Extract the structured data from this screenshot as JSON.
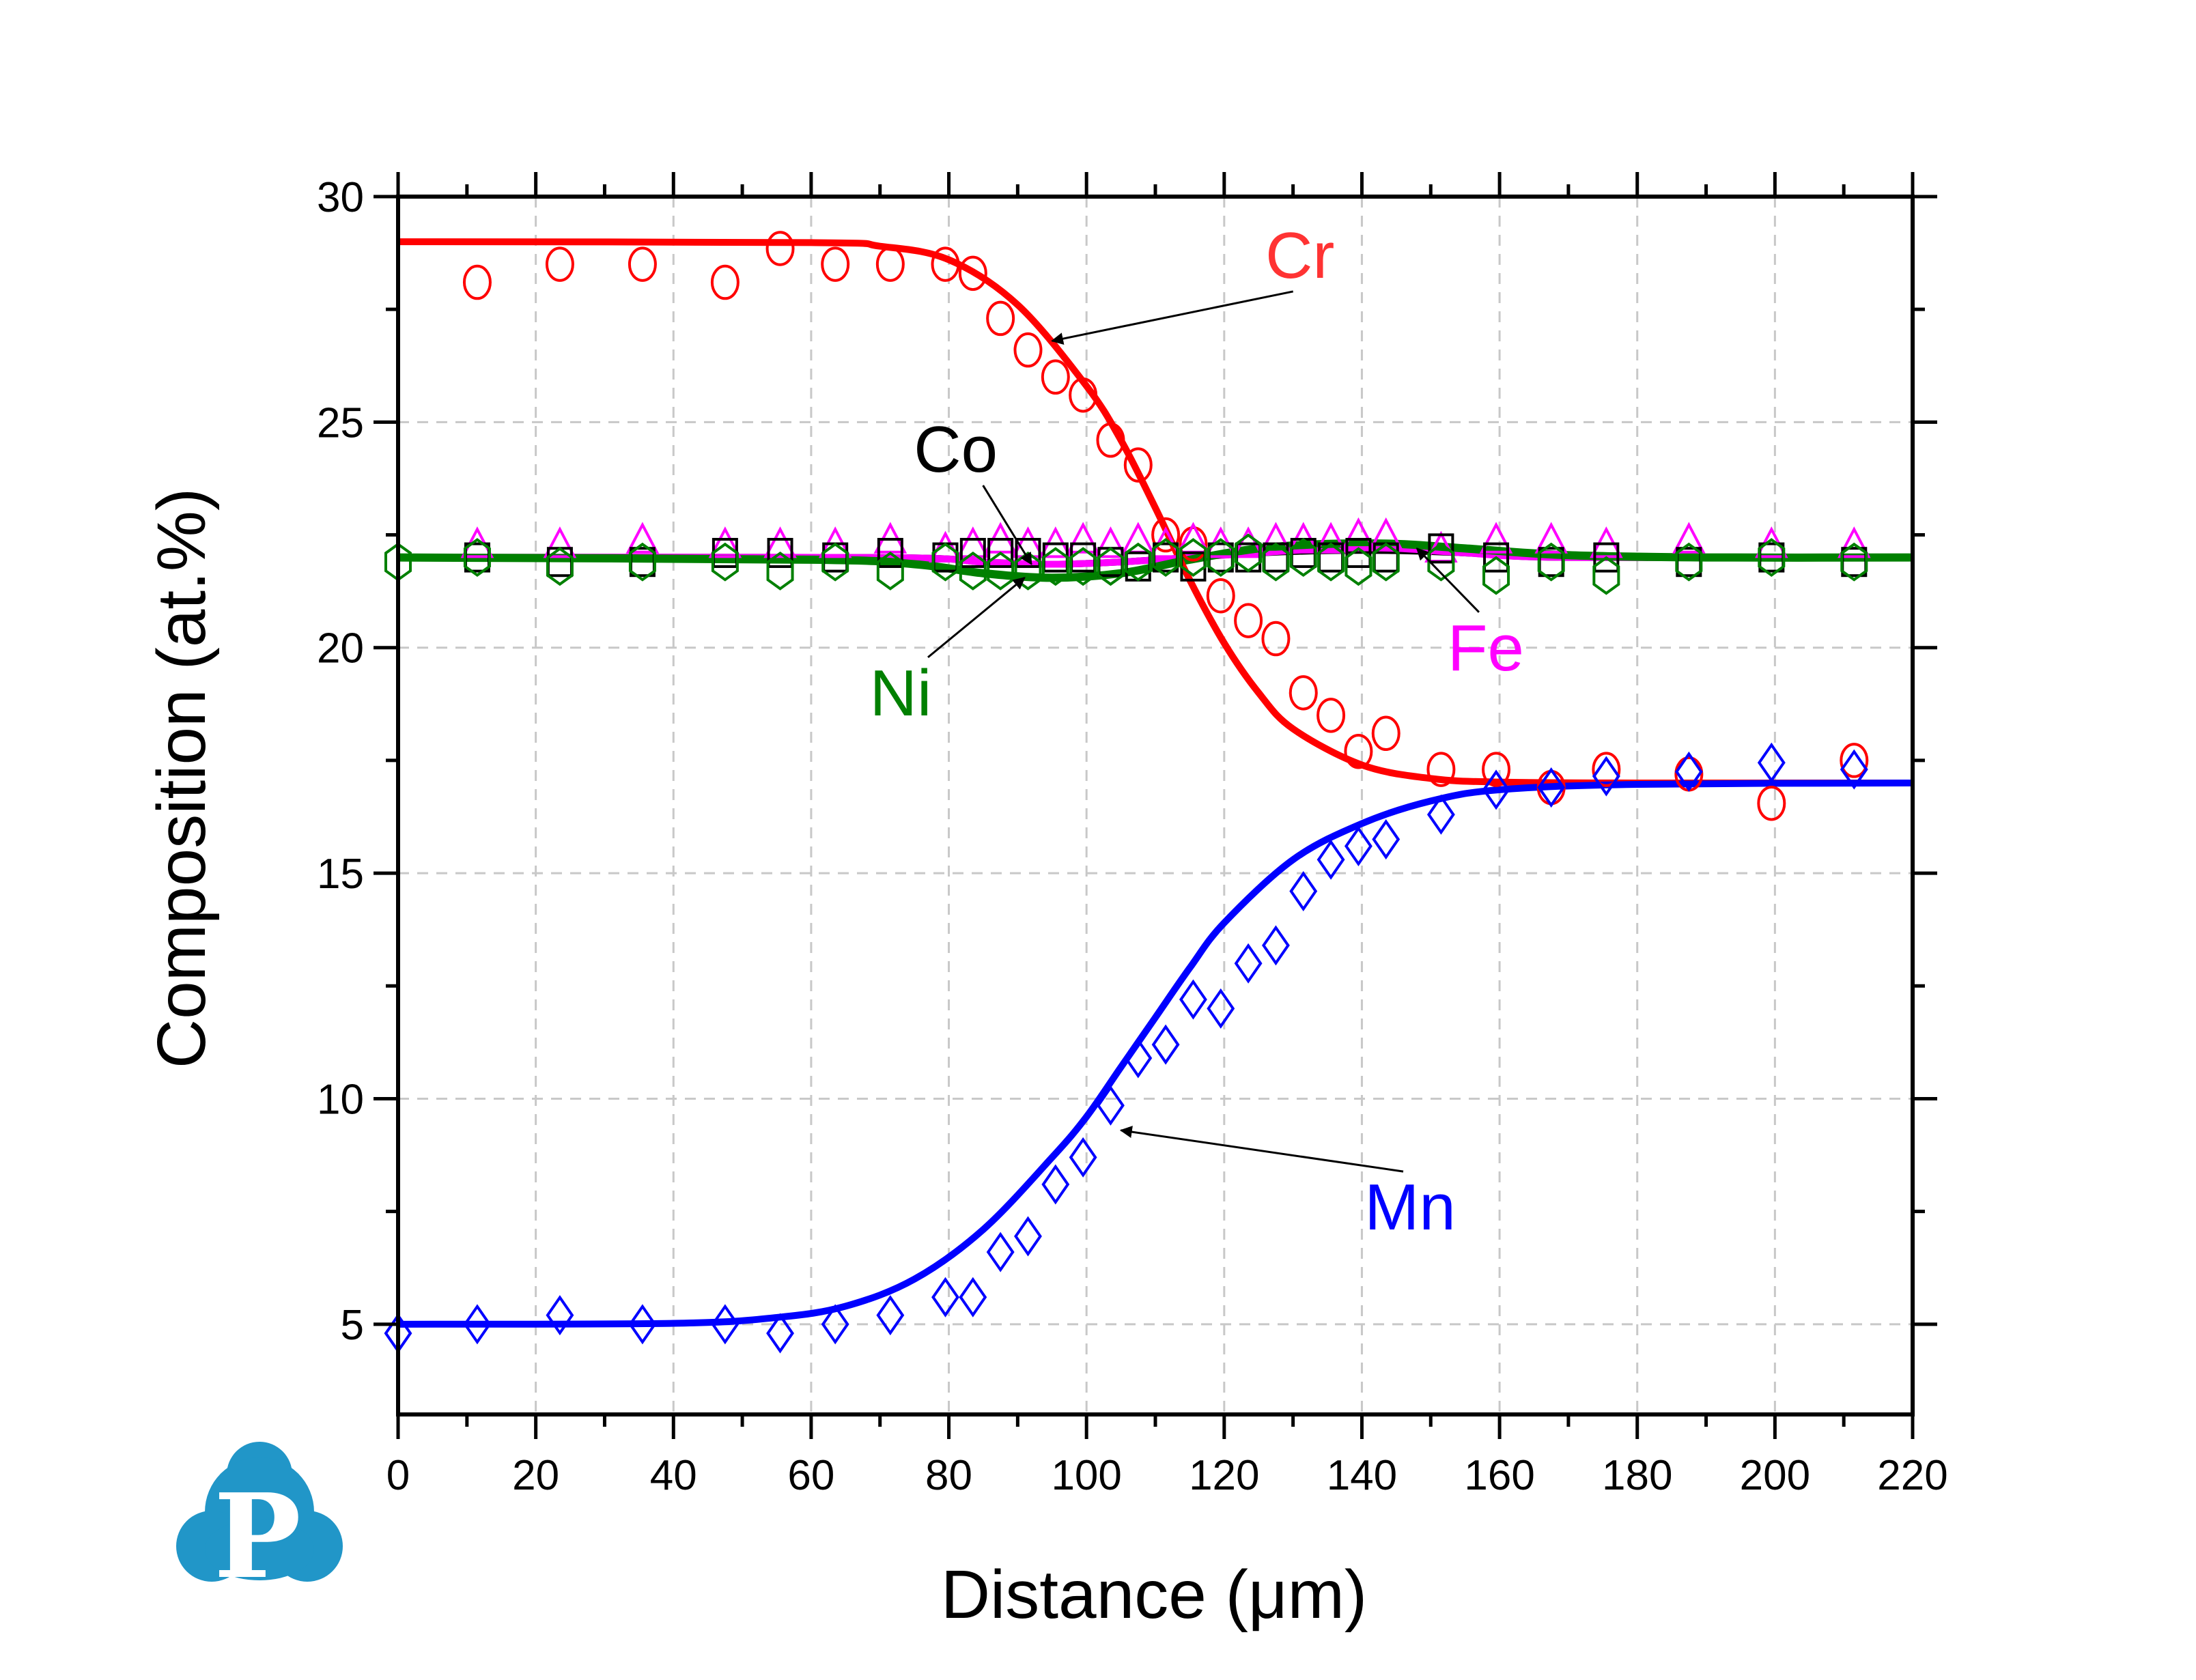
{
  "chart_data": {
    "type": "scatter",
    "title": "",
    "xlabel": "Distance (μm)",
    "ylabel": "Composition (at.%)",
    "xlim": [
      0,
      220
    ],
    "ylim": [
      3,
      30
    ],
    "xticks": [
      0,
      20,
      40,
      60,
      80,
      100,
      120,
      140,
      160,
      180,
      200,
      220
    ],
    "xtick_labels": [
      "0",
      "20",
      "40",
      "60",
      "80",
      "100",
      "120",
      "140",
      "160",
      "180",
      "200",
      "220"
    ],
    "yticks": [
      5,
      10,
      15,
      20,
      25,
      30
    ],
    "ytick_labels": [
      "5",
      "10",
      "15",
      "20",
      "25",
      "30"
    ],
    "grid": true,
    "legend": "none (inline arrow annotations)",
    "series": [
      {
        "name": "Cr",
        "color": "#ff0000",
        "marker": "circle",
        "points": [
          [
            11.5,
            28.1
          ],
          [
            23.5,
            28.5
          ],
          [
            35.5,
            28.5
          ],
          [
            47.5,
            28.1
          ],
          [
            55.5,
            28.85
          ],
          [
            63.5,
            28.5
          ],
          [
            71.5,
            28.5
          ],
          [
            79.5,
            28.5
          ],
          [
            83.5,
            28.3
          ],
          [
            87.5,
            27.3
          ],
          [
            91.5,
            26.6
          ],
          [
            95.5,
            26.0
          ],
          [
            99.5,
            25.6
          ],
          [
            103.5,
            24.6
          ],
          [
            107.5,
            24.05
          ],
          [
            111.5,
            22.5
          ],
          [
            115.5,
            22.3
          ],
          [
            119.5,
            21.15
          ],
          [
            123.5,
            20.6
          ],
          [
            127.5,
            20.2
          ],
          [
            131.5,
            19.0
          ],
          [
            135.5,
            18.5
          ],
          [
            139.5,
            17.7
          ],
          [
            143.5,
            18.1
          ],
          [
            151.5,
            17.3
          ],
          [
            159.5,
            17.3
          ],
          [
            167.5,
            16.9
          ],
          [
            175.5,
            17.3
          ],
          [
            187.5,
            17.2
          ],
          [
            199.5,
            16.55
          ],
          [
            211.5,
            17.5
          ]
        ],
        "fit": [
          [
            0,
            29.0
          ],
          [
            60,
            28.98
          ],
          [
            70,
            28.9
          ],
          [
            80,
            28.6
          ],
          [
            90,
            27.6
          ],
          [
            100,
            25.8
          ],
          [
            105,
            24.6
          ],
          [
            110,
            23.1
          ],
          [
            115,
            21.5
          ],
          [
            120,
            20.1
          ],
          [
            125,
            19.0
          ],
          [
            130,
            18.2
          ],
          [
            140,
            17.4
          ],
          [
            150,
            17.1
          ],
          [
            160,
            17.02
          ],
          [
            180,
            17.0
          ],
          [
            220,
            17.0
          ]
        ]
      },
      {
        "name": "Mn",
        "color": "#0000ff",
        "marker": "diamond",
        "points": [
          [
            0,
            4.8
          ],
          [
            11.5,
            5.0
          ],
          [
            23.5,
            5.2
          ],
          [
            35.5,
            5.0
          ],
          [
            47.5,
            5.0
          ],
          [
            55.5,
            4.8
          ],
          [
            63.5,
            5.0
          ],
          [
            71.5,
            5.2
          ],
          [
            79.5,
            5.6
          ],
          [
            83.5,
            5.6
          ],
          [
            87.5,
            6.6
          ],
          [
            91.5,
            6.95
          ],
          [
            95.5,
            8.1
          ],
          [
            99.5,
            8.7
          ],
          [
            103.5,
            9.85
          ],
          [
            107.5,
            10.9
          ],
          [
            111.5,
            11.2
          ],
          [
            115.5,
            12.2
          ],
          [
            119.5,
            12.0
          ],
          [
            123.5,
            13.0
          ],
          [
            127.5,
            13.4
          ],
          [
            131.5,
            14.6
          ],
          [
            135.5,
            15.3
          ],
          [
            139.5,
            15.6
          ],
          [
            143.5,
            15.75
          ],
          [
            151.5,
            16.3
          ],
          [
            159.5,
            16.85
          ],
          [
            167.5,
            16.9
          ],
          [
            175.5,
            17.15
          ],
          [
            187.5,
            17.25
          ],
          [
            199.5,
            17.45
          ],
          [
            211.5,
            17.3
          ]
        ],
        "fit": [
          [
            0,
            5.0
          ],
          [
            40,
            5.02
          ],
          [
            55,
            5.15
          ],
          [
            65,
            5.4
          ],
          [
            75,
            6.0
          ],
          [
            85,
            7.1
          ],
          [
            95,
            8.7
          ],
          [
            100,
            9.6
          ],
          [
            105,
            10.7
          ],
          [
            110,
            11.8
          ],
          [
            115,
            12.9
          ],
          [
            120,
            13.9
          ],
          [
            130,
            15.3
          ],
          [
            140,
            16.1
          ],
          [
            150,
            16.6
          ],
          [
            160,
            16.85
          ],
          [
            180,
            16.97
          ],
          [
            220,
            17.0
          ]
        ]
      },
      {
        "name": "Fe",
        "color": "#ff00ff",
        "marker": "triangle",
        "points": [
          [
            11.5,
            22.2
          ],
          [
            23.5,
            22.2
          ],
          [
            35.5,
            22.3
          ],
          [
            47.5,
            22.2
          ],
          [
            55.5,
            22.2
          ],
          [
            63.5,
            22.2
          ],
          [
            71.5,
            22.3
          ],
          [
            79.5,
            22.1
          ],
          [
            83.5,
            22.2
          ],
          [
            87.5,
            22.3
          ],
          [
            91.5,
            22.2
          ],
          [
            95.5,
            22.2
          ],
          [
            99.5,
            22.3
          ],
          [
            103.5,
            22.2
          ],
          [
            107.5,
            22.3
          ],
          [
            111.5,
            22.2
          ],
          [
            115.5,
            22.3
          ],
          [
            119.5,
            22.2
          ],
          [
            123.5,
            22.2
          ],
          [
            127.5,
            22.3
          ],
          [
            131.5,
            22.3
          ],
          [
            135.5,
            22.3
          ],
          [
            139.5,
            22.4
          ],
          [
            143.5,
            22.4
          ],
          [
            151.5,
            22.1
          ],
          [
            159.5,
            22.3
          ],
          [
            167.5,
            22.3
          ],
          [
            175.5,
            22.2
          ],
          [
            187.5,
            22.3
          ],
          [
            199.5,
            22.2
          ],
          [
            211.5,
            22.2
          ]
        ],
        "fit": [
          [
            0,
            22.0
          ],
          [
            70,
            22.0
          ],
          [
            85,
            21.9
          ],
          [
            95,
            21.85
          ],
          [
            105,
            21.9
          ],
          [
            115,
            22.0
          ],
          [
            125,
            22.1
          ],
          [
            135,
            22.2
          ],
          [
            145,
            22.2
          ],
          [
            155,
            22.1
          ],
          [
            170,
            22.0
          ],
          [
            220,
            22.0
          ]
        ]
      },
      {
        "name": "Co",
        "color": "#000000",
        "marker": "square",
        "points": [
          [
            11.5,
            22.0
          ],
          [
            23.5,
            21.9
          ],
          [
            35.5,
            21.9
          ],
          [
            47.5,
            22.1
          ],
          [
            55.5,
            22.1
          ],
          [
            63.5,
            22.0
          ],
          [
            71.5,
            22.1
          ],
          [
            79.5,
            22.0
          ],
          [
            83.5,
            22.1
          ],
          [
            87.5,
            22.1
          ],
          [
            91.5,
            22.1
          ],
          [
            95.5,
            22.0
          ],
          [
            99.5,
            22.0
          ],
          [
            103.5,
            21.9
          ],
          [
            107.5,
            21.8
          ],
          [
            111.5,
            22.0
          ],
          [
            115.5,
            21.8
          ],
          [
            119.5,
            22.0
          ],
          [
            123.5,
            22.0
          ],
          [
            127.5,
            22.0
          ],
          [
            131.5,
            22.1
          ],
          [
            135.5,
            22.0
          ],
          [
            139.5,
            22.1
          ],
          [
            143.5,
            22.0
          ],
          [
            151.5,
            22.2
          ],
          [
            159.5,
            22.0
          ],
          [
            167.5,
            21.9
          ],
          [
            175.5,
            22.0
          ],
          [
            187.5,
            21.9
          ],
          [
            199.5,
            22.0
          ],
          [
            211.5,
            21.9
          ]
        ],
        "fit": [
          [
            0,
            22.0
          ],
          [
            70,
            22.0
          ],
          [
            85,
            21.9
          ],
          [
            95,
            21.85
          ],
          [
            105,
            21.9
          ],
          [
            115,
            22.0
          ],
          [
            125,
            22.1
          ],
          [
            135,
            22.15
          ],
          [
            145,
            22.15
          ],
          [
            155,
            22.1
          ],
          [
            170,
            22.0
          ],
          [
            220,
            22.0
          ]
        ]
      },
      {
        "name": "Ni",
        "color": "#008000",
        "marker": "hexagon",
        "points": [
          [
            0,
            21.9
          ],
          [
            11.5,
            22.0
          ],
          [
            23.5,
            21.8
          ],
          [
            35.5,
            21.9
          ],
          [
            47.5,
            21.9
          ],
          [
            55.5,
            21.7
          ],
          [
            63.5,
            21.9
          ],
          [
            71.5,
            21.7
          ],
          [
            79.5,
            21.9
          ],
          [
            83.5,
            21.7
          ],
          [
            87.5,
            21.7
          ],
          [
            91.5,
            21.7
          ],
          [
            95.5,
            21.8
          ],
          [
            99.5,
            21.8
          ],
          [
            103.5,
            21.8
          ],
          [
            107.5,
            21.9
          ],
          [
            111.5,
            22.0
          ],
          [
            115.5,
            22.0
          ],
          [
            119.5,
            22.0
          ],
          [
            123.5,
            22.1
          ],
          [
            127.5,
            21.9
          ],
          [
            131.5,
            22.0
          ],
          [
            135.5,
            21.9
          ],
          [
            139.5,
            21.8
          ],
          [
            143.5,
            21.9
          ],
          [
            151.5,
            21.9
          ],
          [
            159.5,
            21.6
          ],
          [
            167.5,
            21.9
          ],
          [
            175.5,
            21.6
          ],
          [
            187.5,
            21.9
          ],
          [
            199.5,
            22.0
          ],
          [
            211.5,
            21.9
          ]
        ],
        "fit": [
          [
            0,
            22.0
          ],
          [
            60,
            21.95
          ],
          [
            75,
            21.85
          ],
          [
            85,
            21.65
          ],
          [
            95,
            21.55
          ],
          [
            105,
            21.65
          ],
          [
            115,
            21.95
          ],
          [
            125,
            22.2
          ],
          [
            135,
            22.3
          ],
          [
            145,
            22.3
          ],
          [
            155,
            22.2
          ],
          [
            170,
            22.05
          ],
          [
            190,
            22.0
          ],
          [
            220,
            22.0
          ]
        ]
      }
    ],
    "annotations": [
      {
        "text": "Cr",
        "color": "#ff3333",
        "label_at": [
          131,
          28.2
        ],
        "arrow_to": [
          95,
          26.8
        ]
      },
      {
        "text": "Co",
        "color": "#000000",
        "label_at": [
          81,
          23.9
        ],
        "arrow_to": [
          92,
          21.85
        ]
      },
      {
        "text": "Ni",
        "color": "#008000",
        "label_at": [
          73,
          18.5
        ],
        "arrow_to": [
          91,
          21.55
        ]
      },
      {
        "text": "Fe",
        "color": "#ff00ff",
        "label_at": [
          158,
          19.5
        ],
        "arrow_to": [
          148,
          22.2
        ]
      },
      {
        "text": "Mn",
        "color": "#0000ff",
        "label_at": [
          147,
          7.1
        ],
        "arrow_to": [
          105,
          9.3
        ]
      }
    ]
  },
  "logo": {
    "letter": "P",
    "color": "#2196c8",
    "icon": "cloud-p-logo"
  }
}
